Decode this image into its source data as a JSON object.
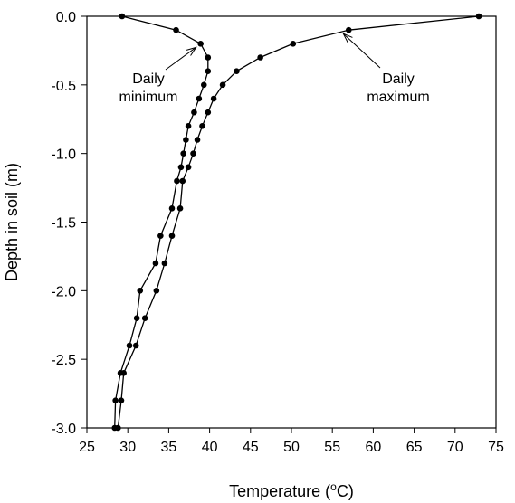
{
  "chart_data": {
    "type": "line",
    "xlabel_main": "Temperature (",
    "xlabel_sup": "o",
    "xlabel_end": "C)",
    "ylabel": "Depth in soil (m)",
    "xlim": [
      25,
      75
    ],
    "ylim": [
      -3.0,
      0.0
    ],
    "x_ticks": [
      25,
      30,
      35,
      40,
      45,
      50,
      55,
      60,
      65,
      70,
      75
    ],
    "y_ticks": [
      0.0,
      -0.5,
      -1.0,
      -1.5,
      -2.0,
      -2.5,
      -3.0
    ],
    "y_tick_labels": [
      "0.0",
      "-0.5",
      "-1.0",
      "-1.5",
      "-2.0",
      "-2.5",
      "-3.0"
    ],
    "series": [
      {
        "name": "Daily minimum",
        "points": [
          [
            29.3,
            0.0
          ],
          [
            35.9,
            -0.1
          ],
          [
            38.9,
            -0.2
          ],
          [
            39.8,
            -0.3
          ],
          [
            39.8,
            -0.4
          ],
          [
            39.3,
            -0.5
          ],
          [
            38.7,
            -0.6
          ],
          [
            38.1,
            -0.7
          ],
          [
            37.4,
            -0.8
          ],
          [
            37.1,
            -0.9
          ],
          [
            36.8,
            -1.0
          ],
          [
            36.5,
            -1.1
          ],
          [
            36.0,
            -1.2
          ],
          [
            35.4,
            -1.4
          ],
          [
            34.0,
            -1.6
          ],
          [
            33.4,
            -1.8
          ],
          [
            31.5,
            -2.0
          ],
          [
            31.1,
            -2.2
          ],
          [
            30.2,
            -2.4
          ],
          [
            29.1,
            -2.6
          ],
          [
            28.5,
            -2.8
          ],
          [
            28.4,
            -3.0
          ]
        ]
      },
      {
        "name": "Daily maximum",
        "points": [
          [
            72.9,
            0.0
          ],
          [
            57.0,
            -0.1
          ],
          [
            50.2,
            -0.2
          ],
          [
            46.2,
            -0.3
          ],
          [
            43.3,
            -0.4
          ],
          [
            41.6,
            -0.5
          ],
          [
            40.5,
            -0.6
          ],
          [
            39.8,
            -0.7
          ],
          [
            39.1,
            -0.8
          ],
          [
            38.5,
            -0.9
          ],
          [
            38.0,
            -1.0
          ],
          [
            37.4,
            -1.1
          ],
          [
            36.7,
            -1.2
          ],
          [
            36.4,
            -1.4
          ],
          [
            35.4,
            -1.6
          ],
          [
            34.5,
            -1.8
          ],
          [
            33.5,
            -2.0
          ],
          [
            32.1,
            -2.2
          ],
          [
            31.0,
            -2.4
          ],
          [
            29.5,
            -2.6
          ],
          [
            29.2,
            -2.8
          ],
          [
            28.8,
            -3.0
          ]
        ]
      }
    ],
    "annotations": [
      {
        "lines": [
          "Daily",
          "minimum"
        ],
        "target": [
          38.9,
          -0.2
        ]
      },
      {
        "lines": [
          "Daily",
          "maximum"
        ],
        "target": [
          57.0,
          -0.1
        ]
      }
    ],
    "grid": false,
    "legend": "none"
  }
}
